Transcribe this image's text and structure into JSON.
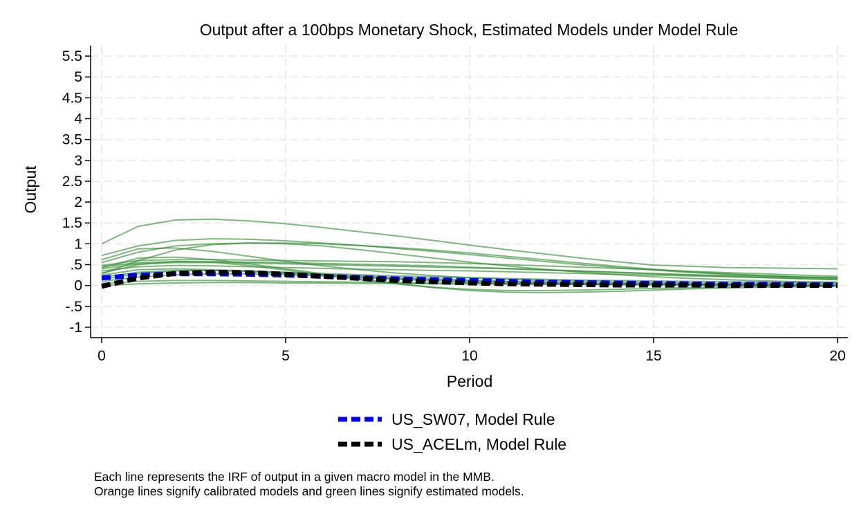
{
  "chart_data": {
    "type": "line",
    "title": "Output after a 100bps Monetary Shock, Estimated Models under Model Rule",
    "xlabel": "Period",
    "ylabel": "Output",
    "xlim": [
      0,
      20
    ],
    "ylim": [
      -1.25,
      5.75
    ],
    "x_ticks": [
      0,
      5,
      10,
      15,
      20
    ],
    "x_tick_labels": [
      "0",
      "5",
      "10",
      "15",
      "20"
    ],
    "y_ticks": [
      -1,
      -0.5,
      0,
      0.5,
      1,
      1.5,
      2,
      2.5,
      3,
      3.5,
      4,
      4.5,
      5,
      5.5
    ],
    "y_tick_labels": [
      "-1",
      "-.5",
      "0",
      ".5",
      "1",
      "1.5",
      "2",
      "2.5",
      "3",
      "3.5",
      "4",
      "4.5",
      "5",
      "5.5"
    ],
    "grid": true,
    "legend_position": "bottom",
    "x": [
      0,
      1,
      2,
      3,
      4,
      5,
      6,
      7,
      8,
      9,
      10,
      11,
      12,
      13,
      14,
      15,
      16,
      17,
      18,
      19,
      20
    ],
    "colors": {
      "estimated": "#2e8b2e",
      "sw07": "#0000ff",
      "acel": "#000000"
    },
    "background_series": [
      {
        "values": [
          1.0,
          1.42,
          1.57,
          1.59,
          1.55,
          1.48,
          1.39,
          1.29,
          1.19,
          1.08,
          0.97,
          0.86,
          0.76,
          0.66,
          0.57,
          0.49,
          0.46,
          0.43,
          0.42,
          0.41,
          0.4
        ]
      },
      {
        "values": [
          0.72,
          0.95,
          1.08,
          1.12,
          1.11,
          1.07,
          1.02,
          0.96,
          0.89,
          0.82,
          0.74,
          0.66,
          0.58,
          0.5,
          0.43,
          0.37,
          0.31,
          0.27,
          0.23,
          0.2,
          0.18
        ]
      },
      {
        "values": [
          0.55,
          0.8,
          0.95,
          1.0,
          1.02,
          1.02,
          1.0,
          0.96,
          0.91,
          0.85,
          0.78,
          0.7,
          0.62,
          0.54,
          0.46,
          0.39,
          0.33,
          0.28,
          0.24,
          0.21,
          0.19
        ]
      },
      {
        "values": [
          0.62,
          0.88,
          0.9,
          0.82,
          0.7,
          0.58,
          0.47,
          0.38,
          0.3,
          0.24,
          0.19,
          0.15,
          0.12,
          0.1,
          0.08,
          0.07,
          0.06,
          0.05,
          0.05,
          0.05,
          0.05
        ]
      },
      {
        "values": [
          0.28,
          0.6,
          0.85,
          0.98,
          1.02,
          1.0,
          0.95,
          0.86,
          0.76,
          0.66,
          0.56,
          0.47,
          0.39,
          0.32,
          0.26,
          0.21,
          0.17,
          0.14,
          0.11,
          0.09,
          0.08
        ]
      },
      {
        "values": [
          0.48,
          0.6,
          0.62,
          0.62,
          0.61,
          0.6,
          0.59,
          0.58,
          0.57,
          0.55,
          0.53,
          0.5,
          0.47,
          0.44,
          0.41,
          0.38,
          0.34,
          0.31,
          0.28,
          0.25,
          0.22
        ]
      },
      {
        "values": [
          0.4,
          0.52,
          0.55,
          0.55,
          0.54,
          0.52,
          0.5,
          0.48,
          0.46,
          0.44,
          0.42,
          0.4,
          0.37,
          0.34,
          0.31,
          0.28,
          0.25,
          0.22,
          0.19,
          0.16,
          0.14
        ]
      },
      {
        "values": [
          0.35,
          0.45,
          0.48,
          0.47,
          0.45,
          0.43,
          0.41,
          0.39,
          0.38,
          0.36,
          0.35,
          0.33,
          0.31,
          0.29,
          0.27,
          0.25,
          0.23,
          0.21,
          0.19,
          0.17,
          0.15
        ]
      },
      {
        "values": [
          0.42,
          0.66,
          0.68,
          0.62,
          0.52,
          0.4,
          0.28,
          0.16,
          0.05,
          -0.05,
          -0.12,
          -0.16,
          -0.17,
          -0.16,
          -0.14,
          -0.11,
          -0.08,
          -0.06,
          -0.04,
          -0.03,
          -0.02
        ]
      },
      {
        "values": [
          0.3,
          0.5,
          0.58,
          0.56,
          0.48,
          0.37,
          0.25,
          0.14,
          0.04,
          -0.04,
          -0.09,
          -0.12,
          -0.12,
          -0.11,
          -0.09,
          -0.07,
          -0.05,
          -0.03,
          -0.02,
          -0.01,
          0.0
        ]
      },
      {
        "values": [
          0.2,
          0.32,
          0.36,
          0.36,
          0.34,
          0.31,
          0.27,
          0.23,
          0.19,
          0.16,
          0.13,
          0.1,
          0.08,
          0.06,
          0.05,
          0.04,
          0.03,
          0.02,
          0.02,
          0.01,
          0.01
        ]
      },
      {
        "values": [
          0.1,
          0.2,
          0.26,
          0.28,
          0.28,
          0.26,
          0.23,
          0.2,
          0.17,
          0.14,
          0.11,
          0.09,
          0.07,
          0.05,
          0.04,
          0.03,
          0.02,
          0.02,
          0.01,
          0.01,
          0.01
        ]
      },
      {
        "values": [
          0.05,
          0.1,
          0.12,
          0.12,
          0.11,
          0.1,
          0.09,
          0.08,
          0.07,
          0.06,
          0.05,
          0.04,
          0.03,
          0.03,
          0.02,
          0.02,
          0.02,
          0.01,
          0.01,
          0.01,
          0.01
        ]
      },
      {
        "values": [
          0.0,
          0.04,
          0.06,
          0.07,
          0.07,
          0.06,
          0.06,
          0.05,
          0.05,
          0.04,
          0.04,
          0.03,
          0.03,
          0.02,
          0.02,
          0.02,
          0.01,
          0.01,
          0.01,
          0.01,
          0.01
        ]
      },
      {
        "values": [
          0.15,
          0.28,
          0.35,
          0.36,
          0.33,
          0.29,
          0.24,
          0.19,
          0.15,
          0.11,
          0.08,
          0.06,
          0.04,
          0.03,
          0.02,
          0.02,
          0.01,
          0.01,
          0.01,
          0.0,
          0.0
        ]
      },
      {
        "values": [
          0.25,
          0.38,
          0.4,
          0.38,
          0.35,
          0.32,
          0.29,
          0.26,
          0.23,
          0.21,
          0.19,
          0.17,
          0.15,
          0.13,
          0.12,
          0.11,
          0.1,
          0.09,
          0.08,
          0.08,
          0.07
        ]
      },
      {
        "values": [
          0.45,
          0.55,
          0.57,
          0.57,
          0.56,
          0.55,
          0.53,
          0.51,
          0.49,
          0.47,
          0.44,
          0.41,
          0.38,
          0.35,
          0.32,
          0.29,
          0.26,
          0.24,
          0.22,
          0.2,
          0.18
        ]
      }
    ],
    "series": [
      {
        "name": "US_SW07, Model Rule",
        "color": "#0000ff",
        "dash": "dashed",
        "values": [
          0.18,
          0.25,
          0.28,
          0.28,
          0.27,
          0.25,
          0.22,
          0.19,
          0.16,
          0.14,
          0.12,
          0.1,
          0.08,
          0.07,
          0.06,
          0.05,
          0.04,
          0.03,
          0.03,
          0.02,
          0.02
        ]
      },
      {
        "name": "US_ACELm, Model Rule",
        "color": "#000000",
        "dash": "dashed",
        "values": [
          -0.02,
          0.18,
          0.29,
          0.32,
          0.31,
          0.27,
          0.22,
          0.17,
          0.12,
          0.09,
          0.06,
          0.04,
          0.03,
          0.02,
          0.01,
          0.01,
          0.01,
          0.0,
          0.0,
          0.0,
          0.0
        ]
      }
    ]
  },
  "note": {
    "line1": "Each line represents the IRF of output in a given macro model in the MMB.",
    "line2": "Orange lines signify calibrated models and green lines signify estimated models."
  }
}
